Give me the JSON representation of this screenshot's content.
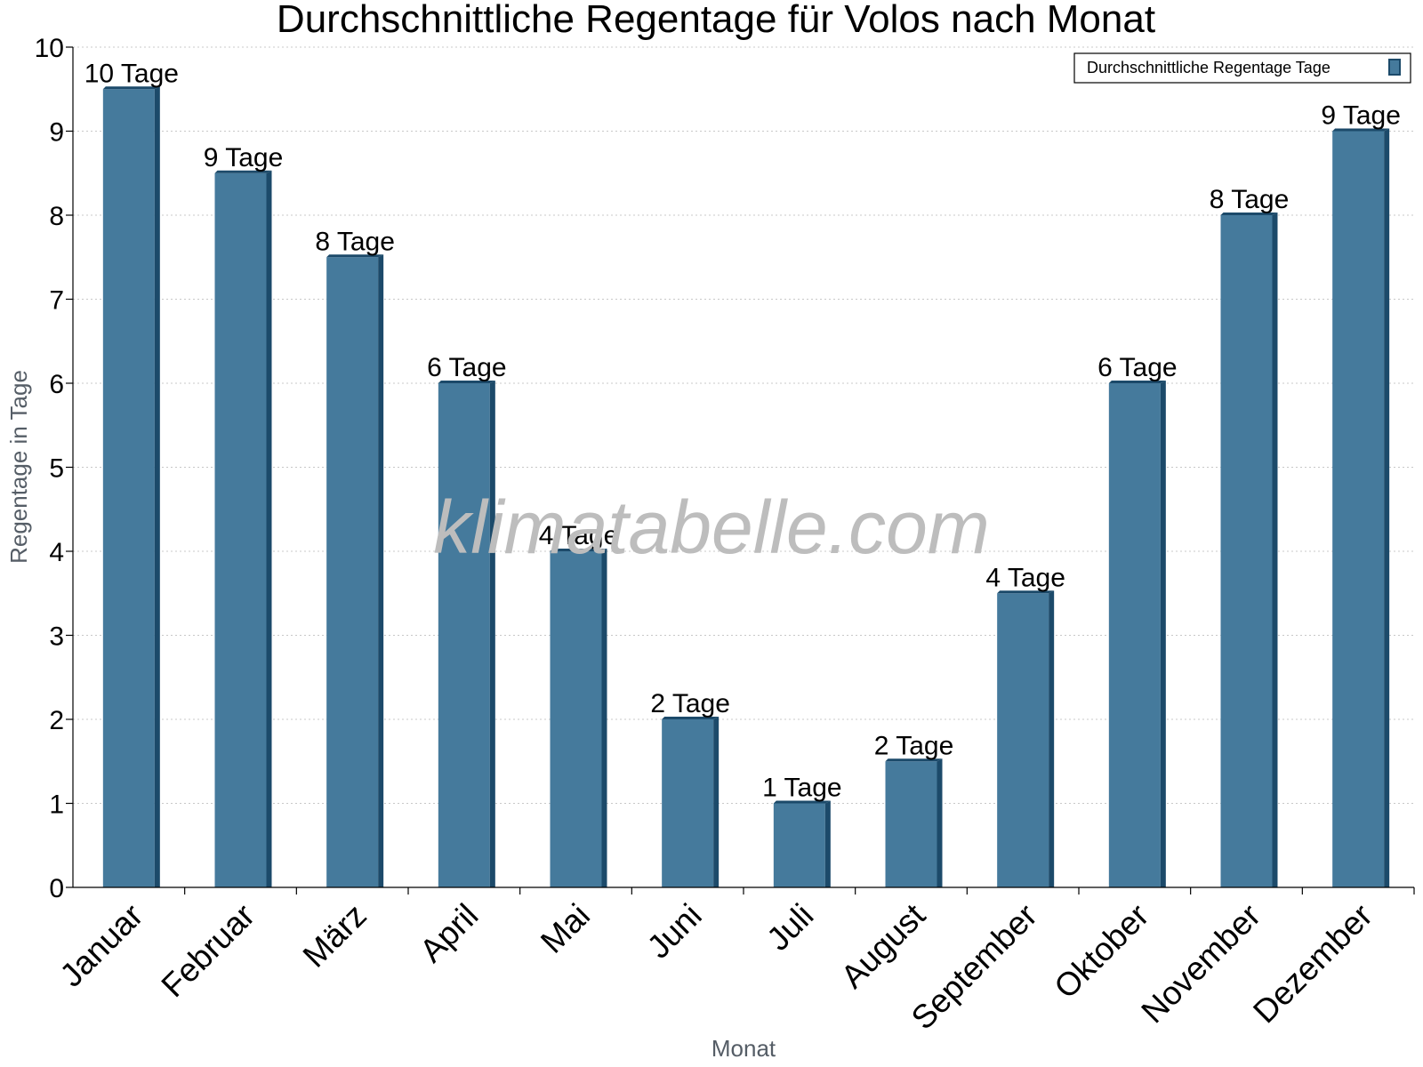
{
  "chart_data": {
    "type": "bar",
    "title": "Durchschnittliche Regentage für Volos nach Monat",
    "xlabel": "Monat",
    "ylabel": "Regentage in Tage",
    "ylim": [
      0,
      10
    ],
    "yticks": [
      "0",
      "1",
      "2",
      "3",
      "4",
      "5",
      "6",
      "7",
      "8",
      "9",
      "10"
    ],
    "grid": true,
    "legend_position": "top-right",
    "categories": [
      "Januar",
      "Februar",
      "März",
      "April",
      "Mai",
      "Juni",
      "Juli",
      "August",
      "September",
      "Oktober",
      "November",
      "Dezember"
    ],
    "series": [
      {
        "name": "Durchschnittliche Regentage Tage",
        "values": [
          9.5,
          8.5,
          7.5,
          6,
          4,
          2,
          1,
          1.5,
          3.5,
          6,
          8,
          9
        ],
        "labels": [
          "10 Tage",
          "9 Tage",
          "8 Tage",
          "6 Tage",
          "4 Tage",
          "2 Tage",
          "1 Tage",
          "2 Tage",
          "4 Tage",
          "6 Tage",
          "8 Tage",
          "9 Tage"
        ],
        "color": "#457a9c",
        "edge_color": "#1c4a6a"
      }
    ]
  },
  "watermark": "klimatabelle.com"
}
